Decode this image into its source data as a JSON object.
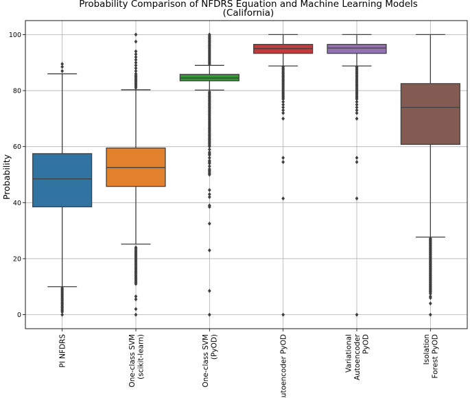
{
  "chart_data": {
    "type": "box",
    "title": "Probability Comparison of NFDRS Equation and Machine Learning Models",
    "subtitle": "(California)",
    "xlabel": "",
    "ylabel": "Probability",
    "ylim": [
      -5,
      105
    ],
    "yticks": [
      "0",
      "20",
      "40",
      "60",
      "80",
      "100"
    ],
    "grid": true,
    "legend": "none",
    "categories": [
      {
        "label": [
          "PI NFDRS"
        ]
      },
      {
        "label": [
          "One-class SVM",
          "(scikit-learn)"
        ]
      },
      {
        "label": [
          "One-class SVM",
          "(PyOD)"
        ]
      },
      {
        "label": [
          "Autoencoder PyOD"
        ]
      },
      {
        "label": [
          "Variational",
          "Autoencoder",
          "PyOD"
        ]
      },
      {
        "label": [
          "Isolation",
          "Forest PyOD"
        ]
      }
    ],
    "boxes": [
      {
        "color": "#3274a1",
        "q1": 38.5,
        "median": 48.5,
        "q3": 57.5,
        "whisker_low": 10,
        "whisker_high": 86,
        "outliers": [
          89.5,
          88.5,
          87,
          9.5,
          9,
          8.5,
          8,
          7.5,
          7,
          6.5,
          6,
          5.5,
          5,
          4.5,
          4,
          3.5,
          3,
          2.5,
          2,
          1.5,
          1,
          0
        ]
      },
      {
        "color": "#e1812c",
        "q1": 45.8,
        "median": 52.5,
        "q3": 59.5,
        "whisker_low": 25.2,
        "whisker_high": 80.3,
        "outliers": [
          100,
          97.5,
          94,
          93,
          92,
          91,
          90,
          89,
          88,
          87,
          86,
          85.5,
          85,
          84.5,
          84,
          83.5,
          83,
          82.5,
          82,
          81.5,
          81,
          24,
          23.5,
          23,
          22.5,
          22,
          21.5,
          21,
          20.5,
          20,
          19.5,
          19,
          18.5,
          18,
          17.5,
          17,
          16.5,
          16,
          15.5,
          15,
          14.5,
          14,
          13.5,
          13,
          12.5,
          12,
          11.5,
          11,
          6.5,
          5.5,
          2,
          0
        ]
      },
      {
        "color": "#3a923a",
        "q1": 83.5,
        "median": 84.5,
        "q3": 85.8,
        "whisker_low": 80.2,
        "whisker_high": 89,
        "outliers": [
          100,
          99.5,
          99,
          98.5,
          98,
          97.5,
          97,
          96.5,
          96,
          95.5,
          95,
          94.5,
          94,
          93.5,
          93,
          92.5,
          92,
          91.5,
          91,
          90.5,
          90,
          89.5,
          79.5,
          79,
          78.5,
          78,
          77.5,
          77,
          76.5,
          76,
          75.5,
          75,
          74.5,
          74,
          73.5,
          73,
          72.5,
          72,
          71.5,
          71,
          70.5,
          70,
          69.5,
          69,
          68.5,
          68,
          67.5,
          67,
          66.5,
          66,
          65.5,
          65,
          64.5,
          64,
          63.5,
          63,
          62.5,
          62,
          61.5,
          61,
          60.5,
          60,
          59,
          58,
          57.5,
          57,
          56,
          55,
          54.5,
          54,
          53,
          52,
          51.5,
          51,
          50.5,
          50,
          44.5,
          43,
          42,
          39,
          38.5,
          32.5,
          23,
          8.5,
          0
        ]
      },
      {
        "color": "#c03d3e",
        "q1": 93.3,
        "median": 95,
        "q3": 96.5,
        "whisker_low": 88.8,
        "whisker_high": 100,
        "outliers": [
          88.5,
          88,
          87.5,
          87,
          86.5,
          86,
          85.5,
          85,
          84.5,
          84,
          83.5,
          83,
          82.5,
          82,
          81.5,
          81,
          80.5,
          80,
          79.5,
          79,
          78.5,
          78,
          77.5,
          77,
          76,
          75,
          74,
          73,
          72,
          70,
          56,
          54.5,
          41.5,
          0
        ]
      },
      {
        "color": "#9372b2",
        "q1": 93.3,
        "median": 95.2,
        "q3": 96.5,
        "whisker_low": 88.8,
        "whisker_high": 100,
        "outliers": [
          88.5,
          88,
          87.5,
          87,
          86.5,
          86,
          85.5,
          85,
          84.5,
          84,
          83.5,
          83,
          82.5,
          82,
          81.5,
          81,
          80.5,
          80,
          79.5,
          79,
          78.5,
          78,
          77.5,
          77,
          76,
          75,
          74,
          73,
          72,
          70,
          56,
          54.5,
          41.5,
          0
        ]
      },
      {
        "color": "#845b53",
        "q1": 60.8,
        "median": 74,
        "q3": 82.5,
        "whisker_low": 27.7,
        "whisker_high": 100,
        "outliers": [
          27.2,
          26.8,
          26.4,
          26,
          25.6,
          25.2,
          24.8,
          24.4,
          24,
          23.6,
          23.2,
          22.8,
          22.4,
          22,
          21.6,
          21.2,
          20.8,
          20.4,
          20,
          19.6,
          19.2,
          18.8,
          18.4,
          18,
          17.6,
          17.2,
          16.8,
          16.4,
          16,
          15.6,
          15.2,
          14.8,
          14.4,
          14,
          13.6,
          13.2,
          12.8,
          12.4,
          12,
          11.6,
          11.2,
          10.8,
          10.4,
          10,
          9.6,
          9.2,
          8.8,
          8.4,
          8,
          7.5,
          6.5,
          6,
          4,
          0
        ]
      }
    ]
  }
}
